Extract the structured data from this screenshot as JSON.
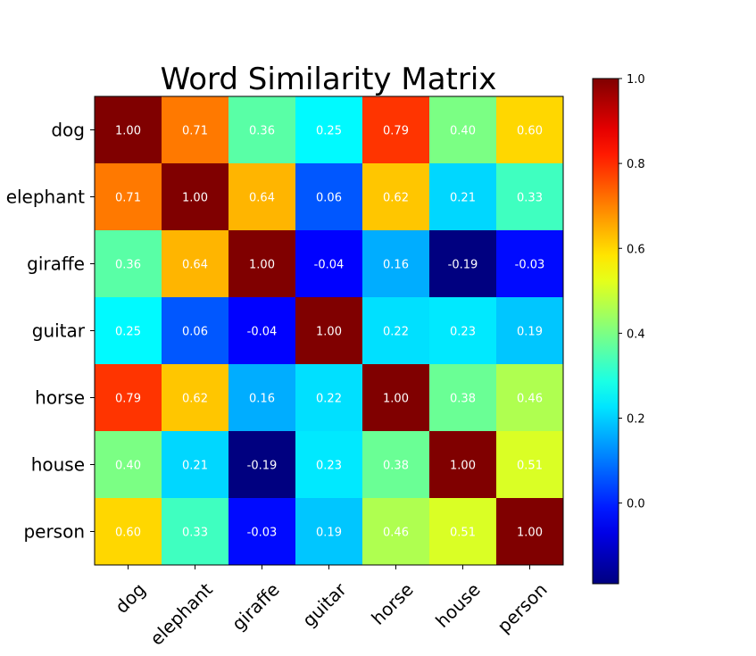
{
  "chart_data": {
    "type": "heatmap",
    "title": "Word Similarity Matrix",
    "xlabel": "",
    "ylabel": "",
    "rows": [
      "dog",
      "elephant",
      "giraffe",
      "guitar",
      "horse",
      "house",
      "person"
    ],
    "cols": [
      "dog",
      "elephant",
      "giraffe",
      "guitar",
      "horse",
      "house",
      "person"
    ],
    "values": [
      [
        1.0,
        0.71,
        0.36,
        0.25,
        0.79,
        0.4,
        0.6
      ],
      [
        0.71,
        1.0,
        0.64,
        0.06,
        0.62,
        0.21,
        0.33
      ],
      [
        0.36,
        0.64,
        1.0,
        -0.04,
        0.16,
        -0.19,
        -0.03
      ],
      [
        0.25,
        0.06,
        -0.04,
        1.0,
        0.22,
        0.23,
        0.19
      ],
      [
        0.79,
        0.62,
        0.16,
        0.22,
        1.0,
        0.38,
        0.46
      ],
      [
        0.4,
        0.21,
        -0.19,
        0.23,
        0.38,
        1.0,
        0.51
      ],
      [
        0.6,
        0.33,
        -0.03,
        0.19,
        0.46,
        0.51,
        1.0
      ]
    ],
    "cell_labels": [
      [
        "1.00",
        "0.71",
        "0.36",
        "0.25",
        "0.79",
        "0.40",
        "0.60"
      ],
      [
        "0.71",
        "1.00",
        "0.64",
        "0.06",
        "0.62",
        "0.21",
        "0.33"
      ],
      [
        "0.36",
        "0.64",
        "1.00",
        "-0.04",
        "0.16",
        "-0.19",
        "-0.03"
      ],
      [
        "0.25",
        "0.06",
        "-0.04",
        "1.00",
        "0.22",
        "0.23",
        "0.19"
      ],
      [
        "0.79",
        "0.62",
        "0.16",
        "0.22",
        "1.00",
        "0.38",
        "0.46"
      ],
      [
        "0.40",
        "0.21",
        "-0.19",
        "0.23",
        "0.38",
        "1.00",
        "0.51"
      ],
      [
        "0.60",
        "0.33",
        "-0.03",
        "0.19",
        "0.46",
        "0.51",
        "1.00"
      ]
    ],
    "colormap": "jet",
    "color_range": [
      -0.19,
      1.0
    ],
    "colorbar": {
      "ticks": [
        0.0,
        0.2,
        0.4,
        0.6,
        0.8,
        1.0
      ],
      "tick_labels": [
        "0.0",
        "0.2",
        "0.4",
        "0.6",
        "0.8",
        "1.0"
      ],
      "placement": "right"
    },
    "grid": false,
    "legend": "none"
  }
}
